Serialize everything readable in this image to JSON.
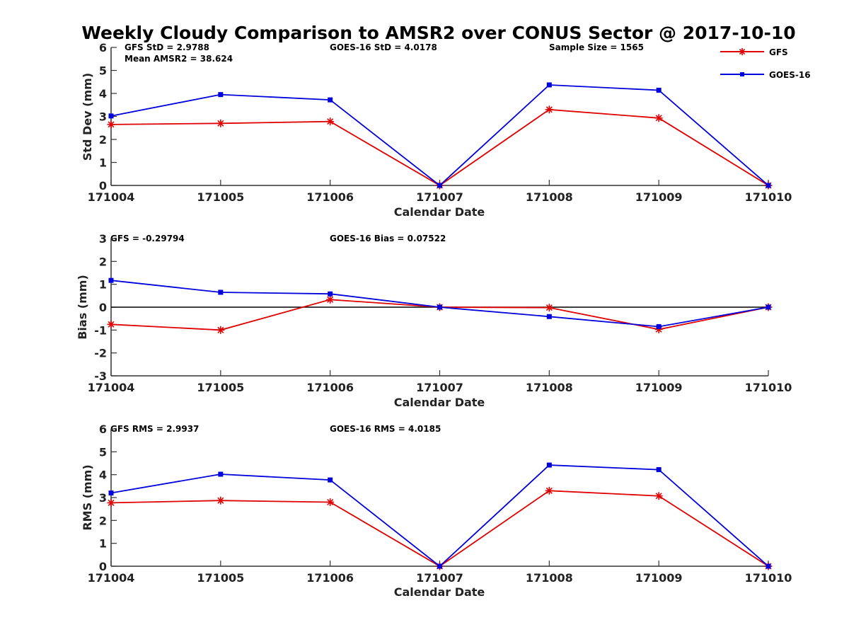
{
  "title": "Weekly Cloudy Comparison to AMSR2 over CONUS Sector @ 2017-10-10",
  "colors": {
    "gfs": "#e00000",
    "goes": "#0000dd",
    "axis": "#333333",
    "zero_line": "#000000"
  },
  "legend": {
    "placement": "top-right",
    "entries": [
      "GFS",
      "GOES-16"
    ]
  },
  "chart_data": [
    {
      "type": "line",
      "categories": [
        "171004",
        "171005",
        "171006",
        "171007",
        "171008",
        "171009",
        "171010"
      ],
      "xlabel": "Calendar Date",
      "ylabel": "Std Dev (mm)",
      "ylim": [
        0,
        6
      ],
      "yticks": [
        "0",
        "1",
        "2",
        "3",
        "4",
        "5",
        "6"
      ],
      "series": [
        {
          "name": "GFS",
          "values": [
            2.65,
            2.7,
            2.78,
            0.0,
            3.3,
            2.93,
            0.0
          ]
        },
        {
          "name": "GOES-16",
          "values": [
            3.02,
            3.95,
            3.72,
            0.0,
            4.37,
            4.14,
            0.0
          ]
        }
      ],
      "annotations": [
        "GFS StD = 2.9788",
        "Mean AMSR2 = 38.624",
        "GOES-16 StD = 4.0178",
        "Sample Size = 1565"
      ]
    },
    {
      "type": "line",
      "categories": [
        "171004",
        "171005",
        "171006",
        "171007",
        "171008",
        "171009",
        "171010"
      ],
      "xlabel": "Calendar Date",
      "ylabel": "Bias (mm)",
      "ylim": [
        -3,
        3
      ],
      "yticks": [
        "-3",
        "-2",
        "-1",
        "0",
        "1",
        "2",
        "3"
      ],
      "zero_line": true,
      "series": [
        {
          "name": "GFS",
          "values": [
            -0.75,
            -1.0,
            0.33,
            0.0,
            -0.02,
            -0.97,
            0.0
          ]
        },
        {
          "name": "GOES-16",
          "values": [
            1.17,
            0.65,
            0.58,
            0.0,
            -0.41,
            -0.85,
            0.0
          ]
        }
      ],
      "annotations": [
        "GFS = -0.29794",
        "GOES-16 Bias  = 0.07522"
      ]
    },
    {
      "type": "line",
      "categories": [
        "171004",
        "171005",
        "171006",
        "171007",
        "171008",
        "171009",
        "171010"
      ],
      "xlabel": "Calendar Date",
      "ylabel": "RMS (mm)",
      "ylim": [
        0,
        6
      ],
      "yticks": [
        "0",
        "1",
        "2",
        "3",
        "4",
        "5",
        "6"
      ],
      "series": [
        {
          "name": "GFS",
          "values": [
            2.77,
            2.87,
            2.8,
            0.0,
            3.3,
            3.07,
            0.0
          ]
        },
        {
          "name": "GOES-16",
          "values": [
            3.2,
            4.02,
            3.77,
            0.0,
            4.42,
            4.22,
            0.0
          ]
        }
      ],
      "annotations": [
        "GFS RMS = 2.9937",
        "GOES-16 RMS = 4.0185"
      ]
    }
  ]
}
